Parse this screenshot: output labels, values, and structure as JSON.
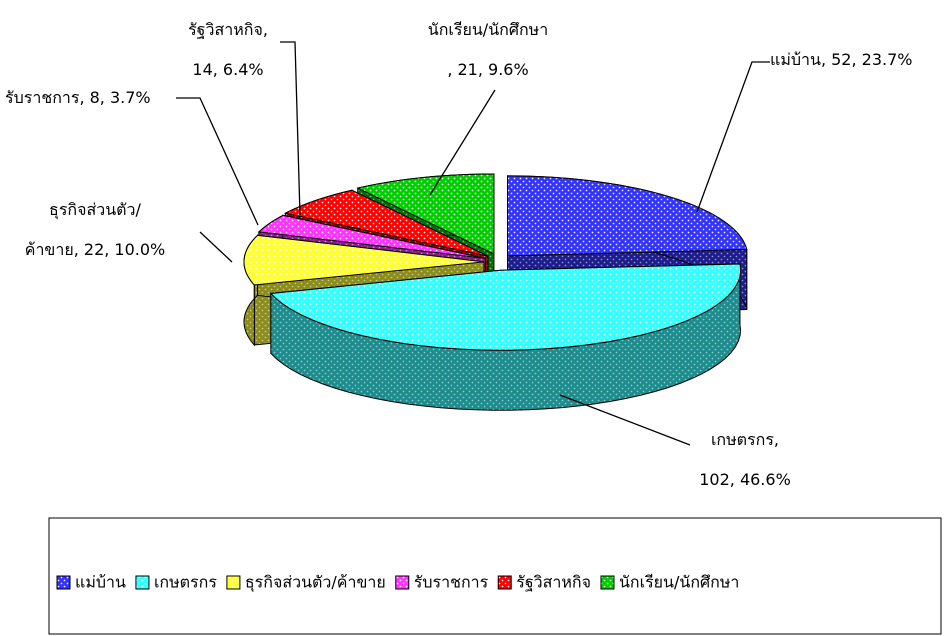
{
  "chart_data": {
    "type": "pie",
    "categories": [
      "แม่บ้าน",
      "เกษตรกร",
      "ธุรกิจส่วนตัว/ค้าขาย",
      "รับราชการ",
      "รัฐวิสาหกิจ",
      "นักเรียน/นักศึกษา"
    ],
    "values": [
      52,
      102,
      22,
      8,
      14,
      21
    ],
    "value_labels": [
      "แม่บ้าน, 52, 23.7%",
      "เกษตรกร,\n102, 46.6%",
      "ธุรกิจส่วนตัว/\nค้าขาย, 22, 10.0%",
      "รับราชการ, 8, 3.7%",
      "รัฐวิสาหกิจ,\n14, 6.4%",
      "นักเรียน/นักศึกษา\n, 21, 9.6%"
    ],
    "colors": [
      "#3333ff",
      "#33ffff",
      "#ffff33",
      "#ff33ff",
      "#ff0000",
      "#00cc00"
    ],
    "legend": "bottom"
  }
}
